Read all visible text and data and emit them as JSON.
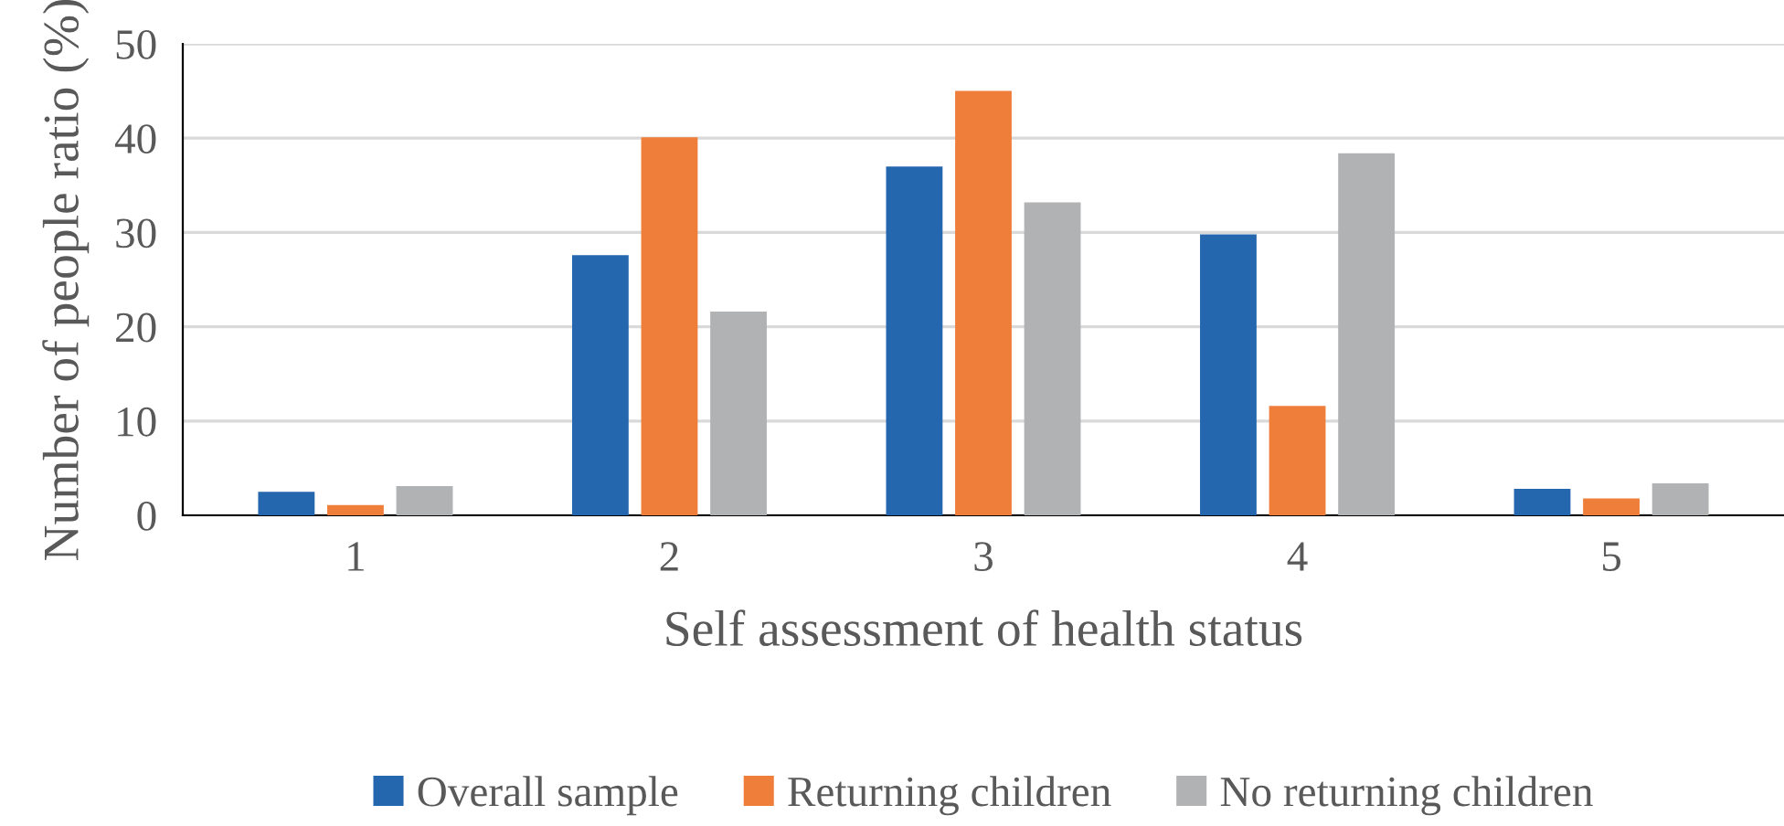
{
  "chart_data": {
    "type": "bar",
    "xlabel": "Self assessment of health status",
    "ylabel": "Number of people ratio (%)",
    "categories": [
      "1",
      "2",
      "3",
      "4",
      "5"
    ],
    "series": [
      {
        "name": "Overall sample",
        "color": "#2567ae",
        "values": [
          2.5,
          27.6,
          37.0,
          29.8,
          2.8
        ]
      },
      {
        "name": "Returning children",
        "color": "#ef7e3a",
        "values": [
          1.1,
          40.1,
          45.0,
          11.6,
          1.8
        ]
      },
      {
        "name": "No returning children",
        "color": "#b1b2b3",
        "values": [
          3.1,
          21.6,
          33.2,
          38.4,
          3.4
        ]
      }
    ],
    "ylim": [
      0,
      50
    ],
    "yticks": [
      0,
      10,
      20,
      30,
      40,
      50
    ],
    "grid": "y",
    "legend": "bottom"
  }
}
